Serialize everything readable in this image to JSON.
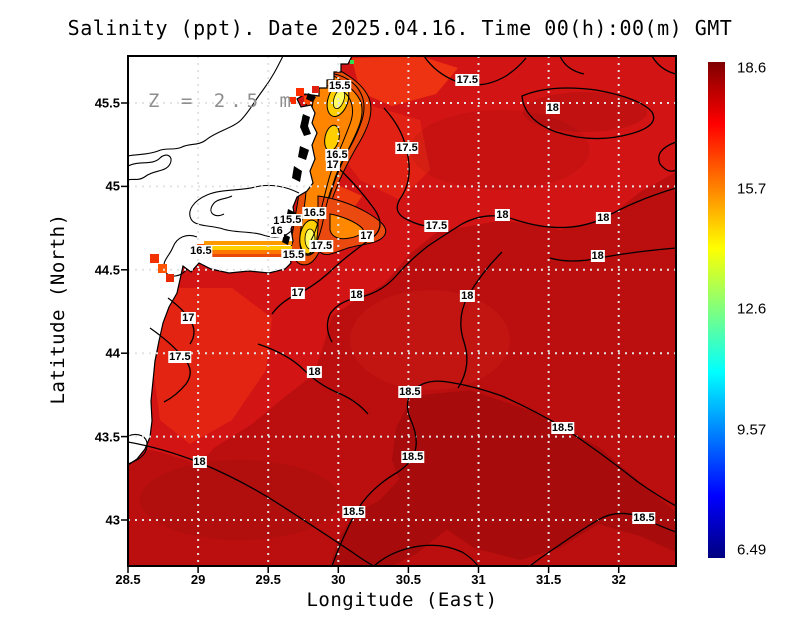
{
  "title": "Salinity (ppt). Date 2025.04.16. Time 00(h):00(m) GMT",
  "annotation": "Z = 2.5 m",
  "axes": {
    "x": {
      "label": "Longitude (East)",
      "ticks": [
        "28.5",
        "29",
        "29.5",
        "30",
        "30.5",
        "31",
        "31.5",
        "32"
      ]
    },
    "y": {
      "label": "Latitude (North)",
      "ticks": [
        "45.5",
        "45",
        "44.5",
        "44",
        "43.5",
        "43"
      ]
    }
  },
  "colorbar": {
    "min": 6.49,
    "max": 18.6,
    "tick_labels": [
      "18.6",
      "15.7",
      "12.6",
      "9.57",
      "6.49"
    ],
    "colormap": "jet"
  },
  "colors": {
    "sea_base": "#d31414",
    "sea_18": "#bb0f0f",
    "sea_18_5": "#a70b0b",
    "plume_orange": "#ff8400",
    "plume_yellow": "#ffcf00",
    "plume_core": "#ffff5e",
    "land": "#ffffff",
    "contour": "#000000",
    "grid": "#e3e3e3",
    "annotation_gray": "#8e8e8e"
  },
  "chart_data": {
    "type": "heatmap",
    "variable": "Salinity (ppt)",
    "depth_m": 2.5,
    "date": "2025.04.16",
    "time_gmt": "00(h):00(m)",
    "xlabel": "Longitude (East)",
    "ylabel": "Latitude (North)",
    "xlim": [
      28.5,
      32.41
    ],
    "ylim": [
      42.72,
      45.78
    ],
    "x_ticks": [
      28.5,
      29,
      29.5,
      30,
      30.5,
      31,
      31.5,
      32
    ],
    "y_ticks": [
      45.5,
      45,
      44.5,
      44,
      43.5,
      43
    ],
    "grid": true,
    "legend_position": "right-colorbar",
    "colorbar": {
      "min": 6.49,
      "max": 18.6,
      "ticks": [
        18.6,
        15.7,
        12.6,
        9.57,
        6.49
      ],
      "colormap": "jet"
    },
    "contour_levels": [
      15,
      15.5,
      16,
      16.5,
      17,
      17.5,
      18,
      18.5
    ],
    "field_range_in_view": [
      15,
      18.6
    ],
    "contour_labels": [
      {
        "value": "15.5",
        "lon": 30.01,
        "lat": 45.6
      },
      {
        "value": "17.5",
        "lon": 30.92,
        "lat": 45.64
      },
      {
        "value": "18",
        "lon": 31.53,
        "lat": 45.47
      },
      {
        "value": "17.5",
        "lon": 30.49,
        "lat": 45.23
      },
      {
        "value": "16.5",
        "lon": 29.99,
        "lat": 45.19
      },
      {
        "value": "17",
        "lon": 29.96,
        "lat": 45.13
      },
      {
        "value": "18",
        "lon": 31.89,
        "lat": 44.81
      },
      {
        "value": "18",
        "lon": 31.17,
        "lat": 44.83
      },
      {
        "value": "16.5",
        "lon": 29.83,
        "lat": 44.84
      },
      {
        "value": "17.5",
        "lon": 30.7,
        "lat": 44.76
      },
      {
        "value": "15",
        "lon": 29.58,
        "lat": 44.79
      },
      {
        "value": "15.5",
        "lon": 29.66,
        "lat": 44.8
      },
      {
        "value": "16",
        "lon": 29.56,
        "lat": 44.73
      },
      {
        "value": "17",
        "lon": 30.2,
        "lat": 44.7
      },
      {
        "value": "17.5",
        "lon": 29.88,
        "lat": 44.64
      },
      {
        "value": "16.5",
        "lon": 29.02,
        "lat": 44.61
      },
      {
        "value": "15.5",
        "lon": 29.68,
        "lat": 44.59
      },
      {
        "value": "18",
        "lon": 31.85,
        "lat": 44.58
      },
      {
        "value": "17",
        "lon": 29.71,
        "lat": 44.36
      },
      {
        "value": "18",
        "lon": 30.13,
        "lat": 44.35
      },
      {
        "value": "18",
        "lon": 30.92,
        "lat": 44.34
      },
      {
        "value": "17",
        "lon": 28.93,
        "lat": 44.21
      },
      {
        "value": "17.5",
        "lon": 28.87,
        "lat": 43.98
      },
      {
        "value": "18",
        "lon": 29.83,
        "lat": 43.89
      },
      {
        "value": "18.5",
        "lon": 30.51,
        "lat": 43.77
      },
      {
        "value": "18.5",
        "lon": 31.6,
        "lat": 43.55
      },
      {
        "value": "18.5",
        "lon": 30.53,
        "lat": 43.38
      },
      {
        "value": "18",
        "lon": 29.01,
        "lat": 43.35
      },
      {
        "value": "18.5",
        "lon": 30.11,
        "lat": 43.05
      },
      {
        "value": "18.5",
        "lon": 32.18,
        "lat": 43.01
      }
    ]
  }
}
